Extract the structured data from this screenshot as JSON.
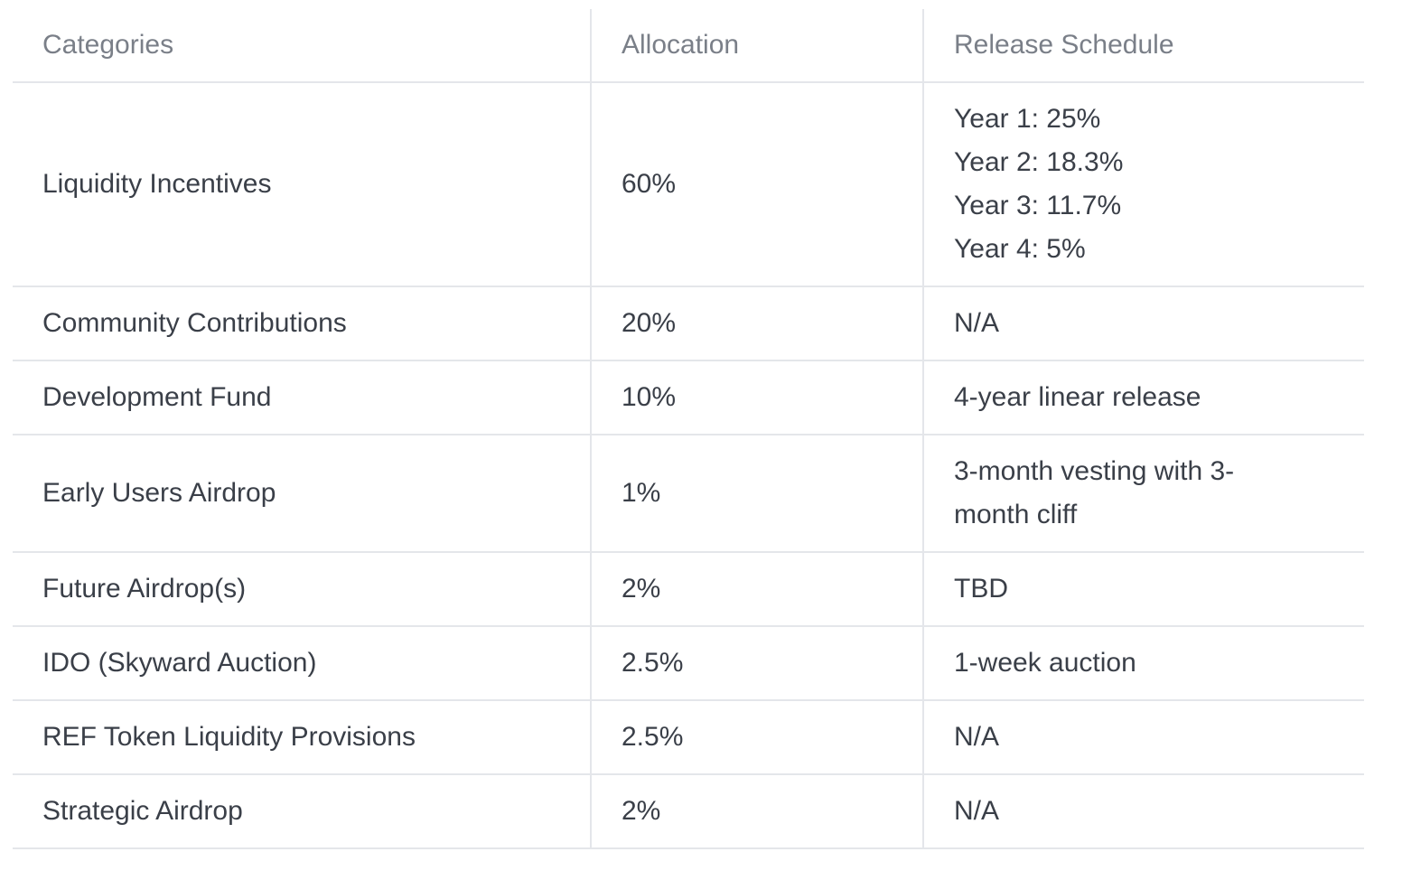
{
  "table": {
    "headers": [
      "Categories",
      "Allocation",
      "Release Schedule"
    ],
    "rows": [
      {
        "category": "Liquidity Incentives",
        "allocation": "60%",
        "schedule": [
          "Year 1: 25%",
          "Year 2: 18.3%",
          "Year 3: 11.7%",
          "Year 4: 5%"
        ]
      },
      {
        "category": "Community Contributions",
        "allocation": "20%",
        "schedule": [
          "N/A"
        ]
      },
      {
        "category": "Development Fund",
        "allocation": "10%",
        "schedule": [
          "4-year linear release"
        ]
      },
      {
        "category": "Early Users Airdrop",
        "allocation": "1%",
        "schedule": [
          "3-month vesting with 3-month cliff"
        ]
      },
      {
        "category": "Future Airdrop(s)",
        "allocation": "2%",
        "schedule": [
          "TBD"
        ]
      },
      {
        "category": "IDO (Skyward Auction)",
        "allocation": "2.5%",
        "schedule": [
          "1-week auction"
        ]
      },
      {
        "category": "REF Token Liquidity Provisions",
        "allocation": "2.5%",
        "schedule": [
          "N/A"
        ]
      },
      {
        "category": "Strategic Airdrop",
        "allocation": "2%",
        "schedule": [
          "N/A"
        ]
      }
    ]
  }
}
